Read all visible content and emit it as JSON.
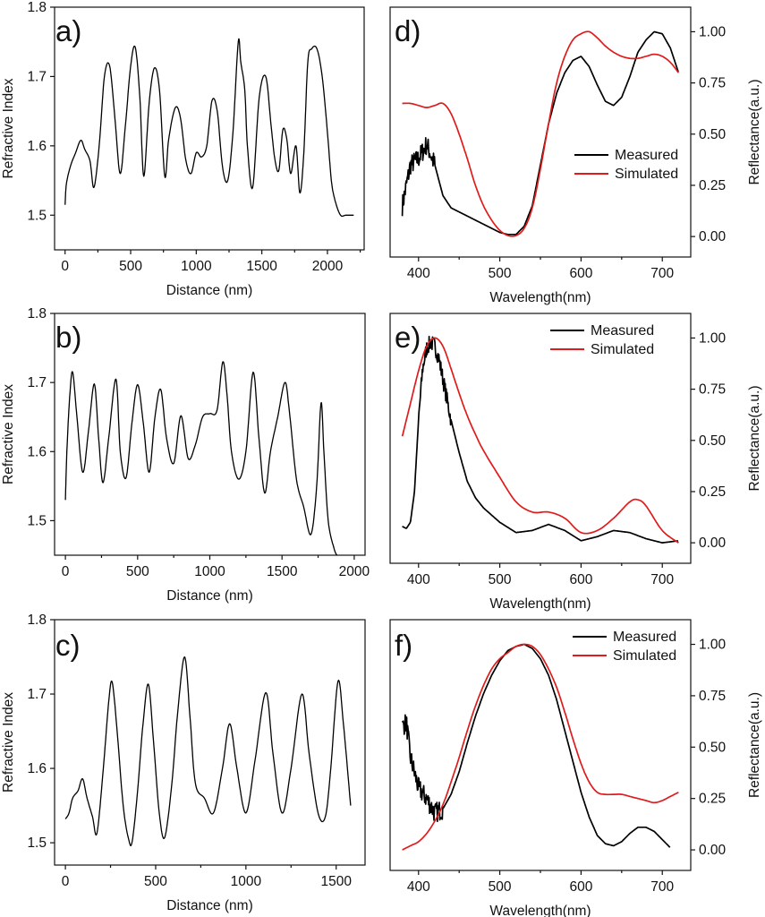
{
  "chart_data": [
    {
      "id": "a",
      "type": "line",
      "panel_label": "a)",
      "xlabel": "Distance (nm)",
      "ylabel": "Refractive Index",
      "xlim": [
        -80,
        2280
      ],
      "ylim": [
        1.45,
        1.8
      ],
      "xticks": [
        0,
        500,
        1000,
        1500,
        2000
      ],
      "yticks": [
        1.5,
        1.6,
        1.7,
        1.8
      ],
      "series": [
        {
          "name": "Refractive index",
          "color": "#000000",
          "x": [
            0,
            10,
            40,
            80,
            120,
            150,
            190,
            220,
            260,
            300,
            340,
            380,
            420,
            460,
            500,
            535,
            570,
            600,
            640,
            680,
            720,
            760,
            790,
            840,
            880,
            920,
            960,
            1000,
            1040,
            1080,
            1120,
            1160,
            1200,
            1240,
            1280,
            1320,
            1340,
            1370,
            1390,
            1430,
            1480,
            1530,
            1570,
            1600,
            1630,
            1660,
            1690,
            1720,
            1760,
            1790,
            1820,
            1850,
            1880,
            1920,
            1960,
            2000,
            2030,
            2060,
            2100,
            2140,
            2180,
            2200
          ],
          "y": [
            1.515,
            1.545,
            1.57,
            1.59,
            1.608,
            1.595,
            1.578,
            1.54,
            1.6,
            1.7,
            1.715,
            1.64,
            1.56,
            1.63,
            1.715,
            1.742,
            1.67,
            1.556,
            1.66,
            1.712,
            1.68,
            1.556,
            1.61,
            1.655,
            1.64,
            1.58,
            1.56,
            1.59,
            1.584,
            1.6,
            1.665,
            1.65,
            1.57,
            1.55,
            1.62,
            1.75,
            1.72,
            1.68,
            1.6,
            1.54,
            1.67,
            1.7,
            1.63,
            1.58,
            1.565,
            1.623,
            1.61,
            1.56,
            1.6,
            1.532,
            1.59,
            1.72,
            1.74,
            1.74,
            1.7,
            1.62,
            1.55,
            1.52,
            1.5,
            1.5,
            1.5,
            1.5
          ]
        }
      ]
    },
    {
      "id": "d",
      "type": "line",
      "panel_label": "d)",
      "xlabel": "Wavelength(nm)",
      "ylabel": "Reflectance(a.u.)",
      "xlim": [
        365,
        735
      ],
      "ylim": [
        -0.1,
        1.12
      ],
      "xticks": [
        400,
        500,
        600,
        700
      ],
      "yticks": [
        0.0,
        0.25,
        0.5,
        0.75,
        1.0
      ],
      "yticklabels": [
        "0.00",
        "0.25",
        "0.50",
        "0.75",
        "1.00"
      ],
      "legend": {
        "position": "right",
        "entries": [
          "Measured",
          "Simulated"
        ]
      },
      "series": [
        {
          "name": "Measured",
          "color": "#000000",
          "noise": 0.05,
          "noise_until": 420,
          "x": [
            380,
            390,
            400,
            410,
            420,
            430,
            440,
            450,
            460,
            470,
            480,
            490,
            500,
            510,
            520,
            530,
            540,
            550,
            560,
            570,
            580,
            590,
            600,
            610,
            620,
            630,
            640,
            650,
            660,
            670,
            680,
            690,
            700,
            710,
            720
          ],
          "y": [
            0.15,
            0.35,
            0.38,
            0.45,
            0.35,
            0.2,
            0.14,
            0.12,
            0.1,
            0.08,
            0.06,
            0.04,
            0.02,
            0.01,
            0.01,
            0.05,
            0.15,
            0.35,
            0.55,
            0.7,
            0.8,
            0.86,
            0.88,
            0.83,
            0.74,
            0.66,
            0.64,
            0.68,
            0.78,
            0.9,
            0.96,
            1.0,
            0.99,
            0.92,
            0.8
          ]
        },
        {
          "name": "Simulated",
          "color": "#e01b1b",
          "x": [
            380,
            390,
            400,
            410,
            420,
            430,
            440,
            450,
            460,
            470,
            480,
            490,
            500,
            510,
            520,
            530,
            540,
            550,
            560,
            570,
            580,
            590,
            600,
            610,
            620,
            630,
            640,
            650,
            660,
            670,
            680,
            690,
            700,
            710,
            720
          ],
          "y": [
            0.65,
            0.65,
            0.64,
            0.63,
            0.64,
            0.65,
            0.6,
            0.5,
            0.38,
            0.25,
            0.15,
            0.08,
            0.03,
            0.005,
            0.005,
            0.04,
            0.14,
            0.33,
            0.55,
            0.75,
            0.88,
            0.96,
            0.99,
            1.0,
            0.97,
            0.93,
            0.9,
            0.88,
            0.87,
            0.87,
            0.88,
            0.89,
            0.88,
            0.85,
            0.8
          ]
        }
      ]
    },
    {
      "id": "b",
      "type": "line",
      "panel_label": "b)",
      "xlabel": "Distance (nm)",
      "ylabel": "Refractive Index",
      "xlim": [
        -75,
        2075
      ],
      "ylim": [
        1.45,
        1.8
      ],
      "xticks": [
        0,
        500,
        1000,
        1500,
        2000
      ],
      "yticks": [
        1.5,
        1.6,
        1.7,
        1.8
      ],
      "series": [
        {
          "name": "Refractive index",
          "color": "#000000",
          "x": [
            0,
            10,
            30,
            50,
            80,
            120,
            160,
            200,
            230,
            260,
            300,
            350,
            380,
            420,
            460,
            500,
            540,
            580,
            620,
            660,
            700,
            750,
            800,
            850,
            900,
            950,
            1000,
            1050,
            1090,
            1120,
            1150,
            1200,
            1250,
            1300,
            1340,
            1380,
            1420,
            1470,
            1520,
            1550,
            1600,
            1650,
            1700,
            1740,
            1770,
            1790,
            1820,
            1860,
            1880
          ],
          "y": [
            1.53,
            1.6,
            1.68,
            1.715,
            1.65,
            1.57,
            1.63,
            1.698,
            1.62,
            1.555,
            1.62,
            1.705,
            1.6,
            1.562,
            1.64,
            1.697,
            1.64,
            1.57,
            1.65,
            1.69,
            1.62,
            1.583,
            1.652,
            1.59,
            1.61,
            1.65,
            1.655,
            1.66,
            1.73,
            1.68,
            1.6,
            1.56,
            1.6,
            1.715,
            1.62,
            1.54,
            1.6,
            1.65,
            1.7,
            1.66,
            1.56,
            1.52,
            1.48,
            1.55,
            1.67,
            1.6,
            1.5,
            1.46,
            1.45
          ]
        }
      ]
    },
    {
      "id": "e",
      "type": "line",
      "panel_label": "e)",
      "xlabel": "Wavelength(nm)",
      "ylabel": "Reflectance(a.u.)",
      "xlim": [
        365,
        735
      ],
      "ylim": [
        -0.1,
        1.12
      ],
      "xticks": [
        400,
        500,
        600,
        700
      ],
      "yticks": [
        0.0,
        0.25,
        0.5,
        0.75,
        1.0
      ],
      "yticklabels": [
        "0.00",
        "0.25",
        "0.50",
        "0.75",
        "1.00"
      ],
      "legend": {
        "position": "top-right",
        "entries": [
          "Measured",
          "Simulated"
        ]
      },
      "series": [
        {
          "name": "Measured",
          "color": "#000000",
          "noise": 0.04,
          "noise_from": 400,
          "noise_until": 440,
          "x": [
            380,
            385,
            390,
            395,
            400,
            405,
            410,
            415,
            420,
            425,
            430,
            440,
            450,
            460,
            470,
            480,
            500,
            520,
            540,
            560,
            580,
            600,
            620,
            640,
            660,
            680,
            700,
            720
          ],
          "y": [
            0.08,
            0.07,
            0.1,
            0.25,
            0.6,
            0.85,
            0.95,
            0.98,
            0.96,
            0.9,
            0.8,
            0.6,
            0.44,
            0.3,
            0.22,
            0.17,
            0.1,
            0.05,
            0.06,
            0.09,
            0.06,
            0.01,
            0.03,
            0.06,
            0.05,
            0.02,
            0.0,
            0.01
          ]
        },
        {
          "name": "Simulated",
          "color": "#e01b1b",
          "x": [
            380,
            390,
            400,
            410,
            420,
            430,
            440,
            450,
            460,
            470,
            480,
            500,
            520,
            540,
            560,
            580,
            600,
            620,
            640,
            660,
            670,
            680,
            700,
            720
          ],
          "y": [
            0.52,
            0.68,
            0.84,
            0.96,
            1.0,
            0.96,
            0.85,
            0.73,
            0.62,
            0.53,
            0.45,
            0.32,
            0.2,
            0.15,
            0.15,
            0.12,
            0.05,
            0.06,
            0.12,
            0.2,
            0.21,
            0.18,
            0.06,
            0.0
          ]
        }
      ]
    },
    {
      "id": "c",
      "type": "line",
      "panel_label": "c)",
      "xlabel": "Distance (nm)",
      "ylabel": "Refractive Index",
      "xlim": [
        -60,
        1660
      ],
      "ylim": [
        1.47,
        1.8
      ],
      "xticks": [
        0,
        500,
        1000,
        1500
      ],
      "yticks": [
        1.5,
        1.6,
        1.7,
        1.8
      ],
      "series": [
        {
          "name": "Refractive index",
          "color": "#000000",
          "x": [
            0,
            20,
            40,
            70,
            95,
            120,
            150,
            175,
            210,
            240,
            260,
            290,
            320,
            350,
            370,
            400,
            430,
            460,
            490,
            520,
            550,
            590,
            620,
            660,
            690,
            720,
            770,
            820,
            870,
            910,
            950,
            1000,
            1050,
            1110,
            1150,
            1200,
            1250,
            1310,
            1350,
            1400,
            1440,
            1470,
            1510,
            1540,
            1580
          ],
          "y": [
            1.532,
            1.54,
            1.56,
            1.57,
            1.586,
            1.56,
            1.535,
            1.513,
            1.6,
            1.69,
            1.715,
            1.64,
            1.55,
            1.505,
            1.502,
            1.57,
            1.66,
            1.713,
            1.63,
            1.54,
            1.507,
            1.58,
            1.67,
            1.75,
            1.67,
            1.58,
            1.56,
            1.54,
            1.6,
            1.66,
            1.6,
            1.54,
            1.61,
            1.702,
            1.62,
            1.54,
            1.6,
            1.7,
            1.62,
            1.54,
            1.535,
            1.6,
            1.717,
            1.66,
            1.55
          ]
        }
      ]
    },
    {
      "id": "f",
      "type": "line",
      "panel_label": "f)",
      "xlabel": "Wavelength(nm)",
      "ylabel": "Reflectance(a.u.)",
      "xlim": [
        365,
        735
      ],
      "ylim": [
        -0.1,
        1.12
      ],
      "xticks": [
        400,
        500,
        600,
        700
      ],
      "yticks": [
        0.0,
        0.25,
        0.5,
        0.75,
        1.0
      ],
      "yticklabels": [
        "0.00",
        "0.25",
        "0.50",
        "0.75",
        "1.00"
      ],
      "legend": {
        "position": "top-right",
        "entries": [
          "Measured",
          "Simulated"
        ]
      },
      "series": [
        {
          "name": "Measured",
          "color": "#000000",
          "noise": 0.05,
          "noise_until": 430,
          "x": [
            380,
            385,
            390,
            400,
            410,
            420,
            430,
            440,
            450,
            460,
            470,
            480,
            490,
            500,
            510,
            520,
            530,
            540,
            550,
            560,
            570,
            580,
            590,
            600,
            610,
            620,
            630,
            640,
            650,
            660,
            670,
            680,
            690,
            700,
            710
          ],
          "y": [
            0.6,
            0.62,
            0.45,
            0.3,
            0.25,
            0.18,
            0.2,
            0.27,
            0.38,
            0.52,
            0.65,
            0.76,
            0.85,
            0.92,
            0.97,
            0.99,
            1.0,
            0.98,
            0.93,
            0.85,
            0.73,
            0.58,
            0.43,
            0.28,
            0.16,
            0.07,
            0.03,
            0.02,
            0.04,
            0.08,
            0.11,
            0.11,
            0.09,
            0.05,
            0.01
          ]
        },
        {
          "name": "Simulated",
          "color": "#e01b1b",
          "x": [
            380,
            390,
            400,
            410,
            420,
            430,
            440,
            450,
            460,
            470,
            480,
            490,
            500,
            510,
            520,
            530,
            540,
            550,
            560,
            570,
            580,
            590,
            600,
            610,
            620,
            630,
            640,
            650,
            660,
            670,
            680,
            690,
            700,
            710,
            720
          ],
          "y": [
            0.0,
            0.02,
            0.04,
            0.08,
            0.14,
            0.22,
            0.33,
            0.45,
            0.58,
            0.7,
            0.8,
            0.88,
            0.93,
            0.96,
            0.99,
            1.0,
            0.99,
            0.95,
            0.88,
            0.79,
            0.67,
            0.54,
            0.42,
            0.33,
            0.28,
            0.27,
            0.27,
            0.27,
            0.26,
            0.25,
            0.24,
            0.23,
            0.24,
            0.26,
            0.28
          ]
        }
      ]
    }
  ]
}
